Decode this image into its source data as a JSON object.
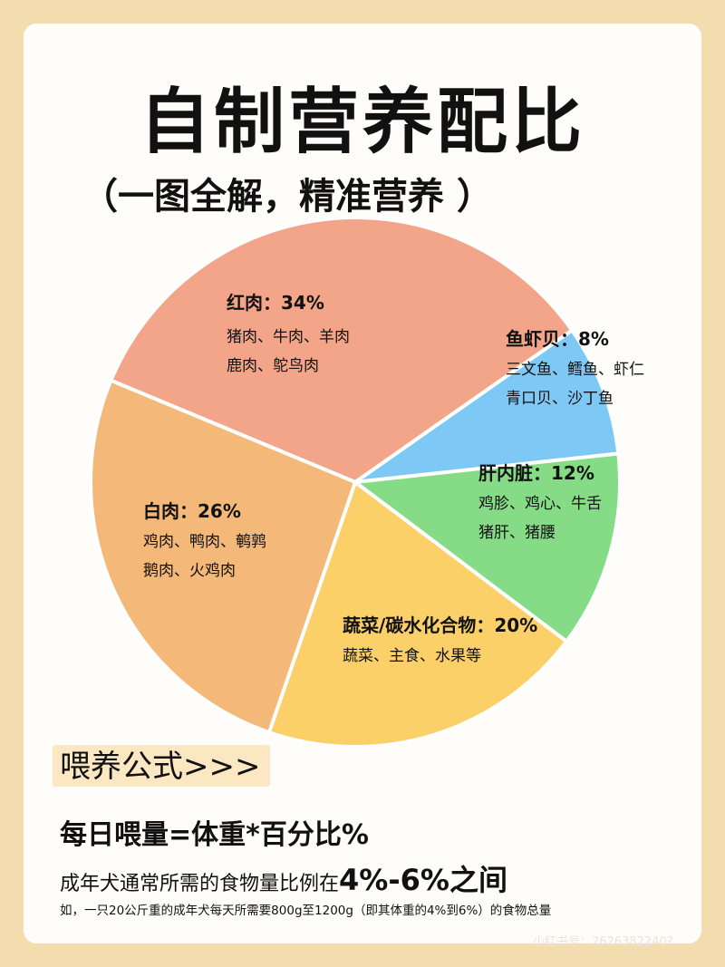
{
  "title": "自制营养配比",
  "subtitle": "（一图全解，精准营养 ）",
  "chart_data": {
    "type": "pie",
    "slices": [
      {
        "name": "红肉",
        "pct_label": "34%",
        "value": 34,
        "detail": [
          "猪肉、牛肉、羊肉",
          "鹿肉、鸵鸟肉"
        ],
        "color": "#f2a588"
      },
      {
        "name": "鱼虾贝",
        "pct_label": "8%",
        "value": 8,
        "detail": [
          "三文鱼、鳕鱼、虾仁",
          "青口贝、沙丁鱼"
        ],
        "color": "#7ec8f5"
      },
      {
        "name": "肝内脏",
        "pct_label": "12%",
        "value": 12,
        "detail": [
          "鸡胗、鸡心、牛舌",
          "猪肝、猪腰"
        ],
        "color": "#86dc86"
      },
      {
        "name": "蔬菜/碳水化合物",
        "pct_label": "20%",
        "value": 20,
        "detail": [
          "蔬菜、主食、水果等"
        ],
        "color": "#fcd068"
      },
      {
        "name": "白肉",
        "pct_label": "26%",
        "value": 26,
        "detail": [
          "鸡肉、鸭肉、鹌鹑",
          "鹅肉、火鸡肉"
        ],
        "color": "#f4b878"
      }
    ]
  },
  "formula": {
    "heading": "喂养公式>>>",
    "main": "每日喂量=体重*百分比%",
    "line2_prefix": "成年犬通常所需的食物量比例在",
    "line2_emph": "4%-6%之间",
    "example": "如，一只20公斤重的成年犬每天所需要800g至1200g（即其体重的4%到6%）的食物总量"
  },
  "watermark": "小红书号：2626382240?"
}
